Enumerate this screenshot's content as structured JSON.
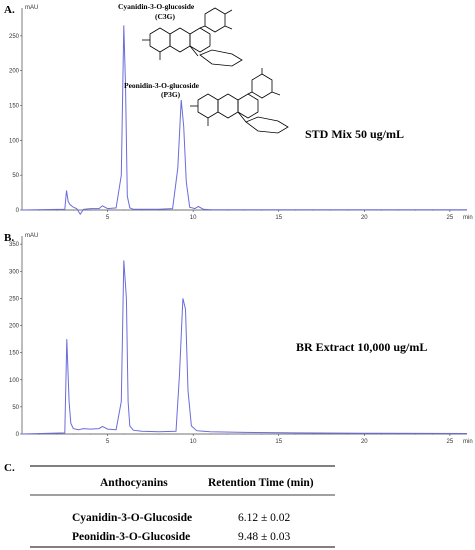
{
  "figure": {
    "panel_a_label": "A.",
    "panel_b_label": "B.",
    "panel_c_label": "C."
  },
  "chart_data": [
    {
      "type": "line",
      "panel": "A",
      "sample_label": "STD Mix 50 ug/mL",
      "ylabel": "mAU",
      "xlabel": "min",
      "xlim": [
        0,
        26
      ],
      "ylim": [
        0,
        290
      ],
      "xticks": [
        "5",
        "10",
        "15",
        "20",
        "25"
      ],
      "yticks": [
        "0",
        "50",
        "100",
        "150",
        "200",
        "250"
      ],
      "series": [
        {
          "color": "#6b6bdc",
          "x": [
            0,
            2.5,
            2.6,
            2.7,
            2.8,
            3.0,
            3.2,
            3.4,
            3.6,
            4.0,
            4.5,
            4.7,
            5.0,
            5.5,
            5.8,
            5.95,
            6.05,
            6.15,
            6.3,
            6.5,
            7.0,
            8.0,
            8.8,
            9.1,
            9.3,
            9.45,
            9.6,
            9.8,
            10.1,
            10.3,
            10.6,
            11,
            13,
            16,
            20,
            26
          ],
          "y": [
            0,
            1,
            28,
            12,
            8,
            4,
            2,
            -6,
            1,
            2,
            2,
            6,
            2,
            3,
            50,
            265,
            180,
            20,
            3,
            1,
            1,
            1,
            2,
            60,
            158,
            120,
            40,
            4,
            2,
            5,
            1,
            0.5,
            0.5,
            0.5,
            0.3,
            0.3
          ]
        }
      ],
      "annotations": [
        {
          "name": "Cyanidin-3-O-glucoside",
          "short": "(C3G)",
          "x": 6.05,
          "y": 265
        },
        {
          "name": "Peonidin-3-O-glucoside",
          "short": "(P3G)",
          "x": 9.3,
          "y": 158
        }
      ]
    },
    {
      "type": "line",
      "panel": "B",
      "sample_label": "BR Extract 10,000 ug/mL",
      "ylabel": "mAU",
      "xlabel": "min",
      "xlim": [
        0,
        26
      ],
      "ylim": [
        0,
        365
      ],
      "xticks": [
        "5",
        "10",
        "15",
        "20",
        "25"
      ],
      "yticks": [
        "0",
        "50",
        "100",
        "150",
        "200",
        "250",
        "300",
        "350"
      ],
      "series": [
        {
          "color": "#6b6bdc",
          "x": [
            0,
            2.5,
            2.62,
            2.75,
            2.85,
            3.0,
            3.3,
            3.6,
            4.0,
            4.5,
            4.7,
            5.0,
            5.5,
            5.8,
            5.95,
            6.1,
            6.2,
            6.3,
            6.5,
            7.0,
            8.0,
            9.0,
            9.2,
            9.4,
            9.55,
            9.7,
            9.9,
            10.2,
            10.6,
            11,
            13,
            16,
            20,
            26
          ],
          "y": [
            0,
            2,
            175,
            60,
            20,
            10,
            8,
            10,
            9,
            10,
            14,
            9,
            8,
            60,
            320,
            250,
            60,
            15,
            7,
            5,
            4,
            5,
            110,
            250,
            230,
            80,
            15,
            6,
            5,
            4,
            3,
            2,
            1.5,
            1
          ]
        }
      ]
    }
  ],
  "table": {
    "header_compound": "Anthocyanins",
    "header_time": "Retention Time (min)",
    "rows": [
      {
        "compound": "Cyanidin-3-O-Glucoside",
        "time": "6.12 ± 0.02"
      },
      {
        "compound": "Peonidin-3-O-Glucoside",
        "time": "9.48 ± 0.03"
      }
    ]
  }
}
